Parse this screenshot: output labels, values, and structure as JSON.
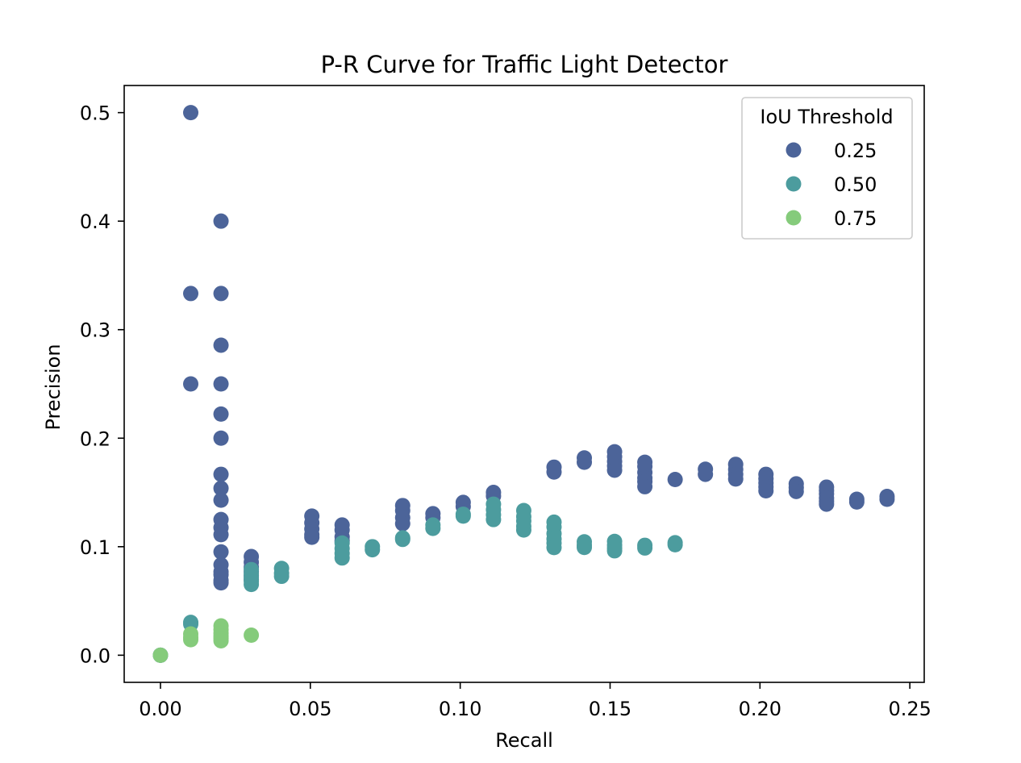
{
  "chart_data": {
    "type": "scatter",
    "title": "P-R Curve for Traffic Light Detector",
    "xlabel": "Recall",
    "ylabel": "Precision",
    "xlim": [
      -0.0121,
      0.2548
    ],
    "ylim": [
      -0.025,
      0.525
    ],
    "xticks": [
      "0.00",
      "0.05",
      "0.10",
      "0.15",
      "0.20",
      "0.25"
    ],
    "yticks": [
      "0.0",
      "0.1",
      "0.2",
      "0.3",
      "0.4",
      "0.5"
    ],
    "grid": false,
    "legend": {
      "title": "IoU Threshold",
      "placement": "top-right"
    },
    "series": [
      {
        "name": "0.25",
        "color": "#4c6499",
        "points": [
          [
            0.0,
            0.0
          ],
          [
            0.0101,
            0.5
          ],
          [
            0.0101,
            0.3333
          ],
          [
            0.0101,
            0.25
          ],
          [
            0.0202,
            0.4
          ],
          [
            0.0202,
            0.3333
          ],
          [
            0.0202,
            0.2857
          ],
          [
            0.0202,
            0.25
          ],
          [
            0.0202,
            0.2222
          ],
          [
            0.0202,
            0.2
          ],
          [
            0.0202,
            0.1667
          ],
          [
            0.0202,
            0.1538
          ],
          [
            0.0202,
            0.1429
          ],
          [
            0.0202,
            0.125
          ],
          [
            0.0202,
            0.1176
          ],
          [
            0.0202,
            0.1111
          ],
          [
            0.0202,
            0.0952
          ],
          [
            0.0202,
            0.0833
          ],
          [
            0.0202,
            0.0769
          ],
          [
            0.0202,
            0.0741
          ],
          [
            0.0202,
            0.069
          ],
          [
            0.0202,
            0.0667
          ],
          [
            0.0303,
            0.0909
          ],
          [
            0.0303,
            0.0857
          ],
          [
            0.0303,
            0.0811
          ],
          [
            0.0303,
            0.0769
          ],
          [
            0.0303,
            0.0732
          ],
          [
            0.0303,
            0.0698
          ],
          [
            0.0505,
            0.1282
          ],
          [
            0.0505,
            0.122
          ],
          [
            0.0505,
            0.1163
          ],
          [
            0.0505,
            0.1111
          ],
          [
            0.0505,
            0.1087
          ],
          [
            0.0606,
            0.12
          ],
          [
            0.0606,
            0.1154
          ],
          [
            0.0606,
            0.1091
          ],
          [
            0.0606,
            0.1053
          ],
          [
            0.0808,
            0.1379
          ],
          [
            0.0808,
            0.1333
          ],
          [
            0.0808,
            0.1267
          ],
          [
            0.0808,
            0.1212
          ],
          [
            0.0909,
            0.1304
          ],
          [
            0.0909,
            0.1267
          ],
          [
            0.101,
            0.1408
          ],
          [
            0.101,
            0.137
          ],
          [
            0.1111,
            0.15
          ],
          [
            0.1111,
            0.1467
          ],
          [
            0.1313,
            0.1733
          ],
          [
            0.1313,
            0.1688
          ],
          [
            0.1414,
            0.1818
          ],
          [
            0.1414,
            0.1778
          ],
          [
            0.1515,
            0.1875
          ],
          [
            0.1515,
            0.1829
          ],
          [
            0.1515,
            0.1786
          ],
          [
            0.1515,
            0.1744
          ],
          [
            0.1515,
            0.1705
          ],
          [
            0.1616,
            0.1778
          ],
          [
            0.1616,
            0.1739
          ],
          [
            0.1616,
            0.1684
          ],
          [
            0.1616,
            0.1633
          ],
          [
            0.1616,
            0.16
          ],
          [
            0.1616,
            0.1553
          ],
          [
            0.1717,
            0.1619
          ],
          [
            0.1818,
            0.1714
          ],
          [
            0.1818,
            0.1667
          ],
          [
            0.1919,
            0.1759
          ],
          [
            0.1919,
            0.1712
          ],
          [
            0.1919,
            0.1667
          ],
          [
            0.1919,
            0.1624
          ],
          [
            0.202,
            0.1667
          ],
          [
            0.202,
            0.1626
          ],
          [
            0.202,
            0.1587
          ],
          [
            0.202,
            0.155
          ],
          [
            0.202,
            0.1515
          ],
          [
            0.2121,
            0.1579
          ],
          [
            0.2121,
            0.1544
          ],
          [
            0.2121,
            0.1509
          ],
          [
            0.2222,
            0.1549
          ],
          [
            0.2222,
            0.1517
          ],
          [
            0.2222,
            0.1486
          ],
          [
            0.2222,
            0.1447
          ],
          [
            0.2222,
            0.1419
          ],
          [
            0.2222,
            0.1392
          ],
          [
            0.2323,
            0.1437
          ],
          [
            0.2323,
            0.1412
          ],
          [
            0.2424,
            0.1463
          ],
          [
            0.2424,
            0.1437
          ]
        ]
      },
      {
        "name": "0.50",
        "color": "#4c9c9e",
        "points": [
          [
            0.0,
            0.0
          ],
          [
            0.0101,
            0.0303
          ],
          [
            0.0101,
            0.0286
          ],
          [
            0.0303,
            0.0789
          ],
          [
            0.0303,
            0.075
          ],
          [
            0.0303,
            0.0714
          ],
          [
            0.0303,
            0.0682
          ],
          [
            0.0303,
            0.0652
          ],
          [
            0.0404,
            0.08
          ],
          [
            0.0404,
            0.0755
          ],
          [
            0.0404,
            0.0727
          ],
          [
            0.0606,
            0.1034
          ],
          [
            0.0606,
            0.0984
          ],
          [
            0.0606,
            0.0938
          ],
          [
            0.0606,
            0.0896
          ],
          [
            0.0707,
            0.1
          ],
          [
            0.0707,
            0.0972
          ],
          [
            0.0808,
            0.1081
          ],
          [
            0.0808,
            0.1067
          ],
          [
            0.0909,
            0.12
          ],
          [
            0.0909,
            0.1169
          ],
          [
            0.101,
            0.1299
          ],
          [
            0.101,
            0.1282
          ],
          [
            0.1111,
            0.1392
          ],
          [
            0.1111,
            0.1341
          ],
          [
            0.1111,
            0.1294
          ],
          [
            0.1111,
            0.125
          ],
          [
            0.1212,
            0.1333
          ],
          [
            0.1212,
            0.1277
          ],
          [
            0.1212,
            0.1237
          ],
          [
            0.1212,
            0.1188
          ],
          [
            0.1212,
            0.1154
          ],
          [
            0.1313,
            0.1226
          ],
          [
            0.1313,
            0.1182
          ],
          [
            0.1313,
            0.1121
          ],
          [
            0.1313,
            0.1071
          ],
          [
            0.1313,
            0.1033
          ],
          [
            0.1313,
            0.0992
          ],
          [
            0.1414,
            0.1045
          ],
          [
            0.1414,
            0.1014
          ],
          [
            0.1414,
            0.0993
          ],
          [
            0.1515,
            0.1049
          ],
          [
            0.1515,
            0.1014
          ],
          [
            0.1515,
            0.0987
          ],
          [
            0.1515,
            0.0962
          ],
          [
            0.1616,
            0.1013
          ],
          [
            0.1616,
            0.0988
          ],
          [
            0.1717,
            0.1037
          ],
          [
            0.1717,
            0.1018
          ]
        ]
      },
      {
        "name": "0.75",
        "color": "#85cb7b",
        "points": [
          [
            0.0,
            0.0
          ],
          [
            0.0101,
            0.0196
          ],
          [
            0.0101,
            0.0164
          ],
          [
            0.0101,
            0.0143
          ],
          [
            0.0202,
            0.027
          ],
          [
            0.0202,
            0.0235
          ],
          [
            0.0202,
            0.0202
          ],
          [
            0.0202,
            0.0175
          ],
          [
            0.0202,
            0.0155
          ],
          [
            0.0202,
            0.0133
          ],
          [
            0.0303,
            0.0185
          ]
        ]
      }
    ]
  }
}
